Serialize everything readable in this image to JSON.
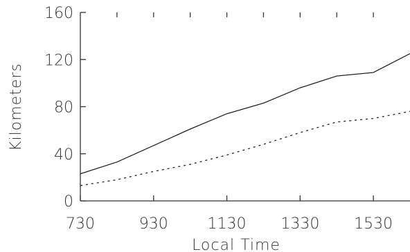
{
  "chart_data": {
    "type": "line",
    "title": "",
    "xlabel": "Local Time",
    "ylabel": "Kilometers",
    "xlim": [
      730,
      1630
    ],
    "ylim": [
      0,
      160
    ],
    "x_ticks": [
      730,
      930,
      1130,
      1330,
      1530
    ],
    "x_tick_labels": [
      "730",
      "930",
      "1130",
      "1330",
      "1530"
    ],
    "y_ticks": [
      0,
      40,
      80,
      120,
      160
    ],
    "y_tick_labels": [
      "0",
      "40",
      "80",
      "120",
      "160"
    ],
    "grid": false,
    "legend": "none",
    "x": [
      730,
      830,
      930,
      1030,
      1130,
      1230,
      1330,
      1430,
      1530,
      1630
    ],
    "series": [
      {
        "style": "solid",
        "color": "#222222",
        "values": [
          23,
          33,
          47,
          61,
          74,
          83,
          96,
          106,
          109,
          125
        ]
      },
      {
        "style": "dotted",
        "color": "#222222",
        "values": [
          13,
          18,
          25,
          31,
          39,
          48,
          58,
          67,
          70,
          76
        ]
      }
    ]
  }
}
